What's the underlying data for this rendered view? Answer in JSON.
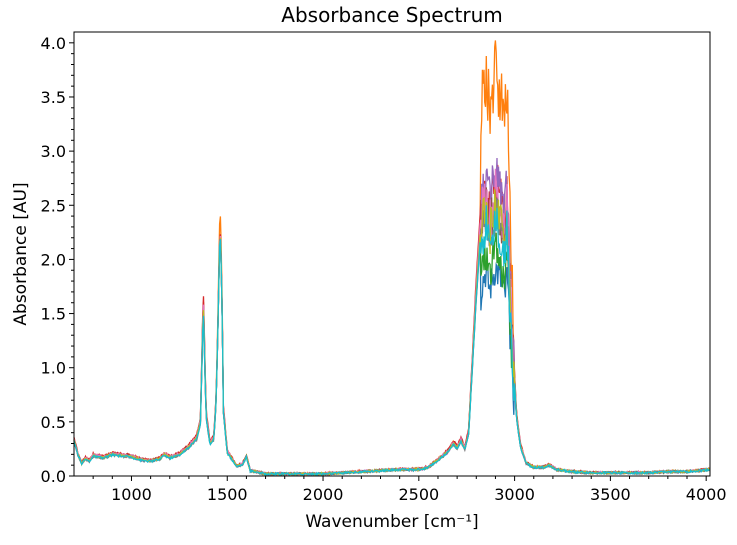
{
  "chart_data": {
    "type": "line",
    "title": "Absorbance Spectrum",
    "xlabel": "Wavenumber [cm⁻¹]",
    "ylabel": "Absorbance [AU]",
    "xlim": [
      700,
      4020
    ],
    "ylim": [
      0,
      4.1
    ],
    "x_ticks": [
      1000,
      1500,
      2000,
      2500,
      3000,
      3500,
      4000
    ],
    "y_ticks": [
      0.0,
      0.5,
      1.0,
      1.5,
      2.0,
      2.5,
      3.0,
      3.5,
      4.0
    ],
    "x_tick_labels": [
      "1000",
      "1500",
      "2000",
      "2500",
      "3000",
      "3500",
      "4000"
    ],
    "y_tick_labels": [
      "0.0",
      "0.5",
      "1.0",
      "1.5",
      "2.0",
      "2.5",
      "3.0",
      "3.5",
      "4.0"
    ],
    "grid": false,
    "legend": "none",
    "palette": [
      "#1f77b4",
      "#ff7f0e",
      "#2ca02c",
      "#d62728",
      "#9467bd",
      "#8c564b",
      "#e377c2",
      "#7f7f7f",
      "#bcbd22",
      "#17becf"
    ],
    "base_spectrum": {
      "x": [
        700,
        720,
        740,
        760,
        780,
        800,
        850,
        900,
        950,
        1000,
        1050,
        1100,
        1150,
        1170,
        1200,
        1250,
        1300,
        1340,
        1360,
        1375,
        1390,
        1410,
        1430,
        1445,
        1455,
        1462,
        1470,
        1480,
        1500,
        1550,
        1580,
        1600,
        1620,
        1650,
        1700,
        1800,
        1900,
        2000,
        2100,
        2200,
        2300,
        2400,
        2500,
        2550,
        2600,
        2650,
        2680,
        2700,
        2720,
        2740,
        2760,
        2800,
        2830,
        2850,
        2870,
        2900,
        2930,
        2950,
        2960,
        2970,
        2990,
        3010,
        3030,
        3060,
        3100,
        3150,
        3180,
        3220,
        3300,
        3400,
        3500,
        3600,
        3700,
        3800,
        3900,
        4020
      ],
      "y": [
        0.33,
        0.2,
        0.12,
        0.16,
        0.14,
        0.19,
        0.17,
        0.2,
        0.19,
        0.18,
        0.15,
        0.14,
        0.16,
        0.2,
        0.17,
        0.2,
        0.27,
        0.35,
        0.5,
        1.6,
        0.55,
        0.3,
        0.35,
        0.8,
        1.55,
        2.1,
        1.7,
        0.6,
        0.22,
        0.09,
        0.11,
        0.18,
        0.05,
        0.04,
        0.02,
        0.02,
        0.02,
        0.02,
        0.03,
        0.04,
        0.05,
        0.06,
        0.06,
        0.08,
        0.15,
        0.22,
        0.3,
        0.26,
        0.33,
        0.25,
        0.4,
        1.7,
        2.5,
        2.65,
        2.4,
        2.7,
        2.5,
        2.3,
        2.6,
        2.1,
        1.2,
        0.55,
        0.28,
        0.12,
        0.08,
        0.08,
        0.1,
        0.06,
        0.04,
        0.03,
        0.03,
        0.03,
        0.03,
        0.04,
        0.04,
        0.06
      ]
    },
    "series": [
      {
        "scale_body": 1.0,
        "scale_peak": 0.72
      },
      {
        "scale_body": 1.05,
        "scale_peak": 1.4
      },
      {
        "scale_body": 1.0,
        "scale_peak": 0.78
      },
      {
        "scale_body": 1.08,
        "scale_peak": 1.02
      },
      {
        "scale_body": 0.98,
        "scale_peak": 1.05
      },
      {
        "scale_body": 1.02,
        "scale_peak": 0.95
      },
      {
        "scale_body": 1.04,
        "scale_peak": 0.98
      },
      {
        "scale_body": 0.96,
        "scale_peak": 0.9
      },
      {
        "scale_body": 1.0,
        "scale_peak": 0.93
      },
      {
        "scale_body": 0.97,
        "scale_peak": 0.88
      }
    ]
  }
}
